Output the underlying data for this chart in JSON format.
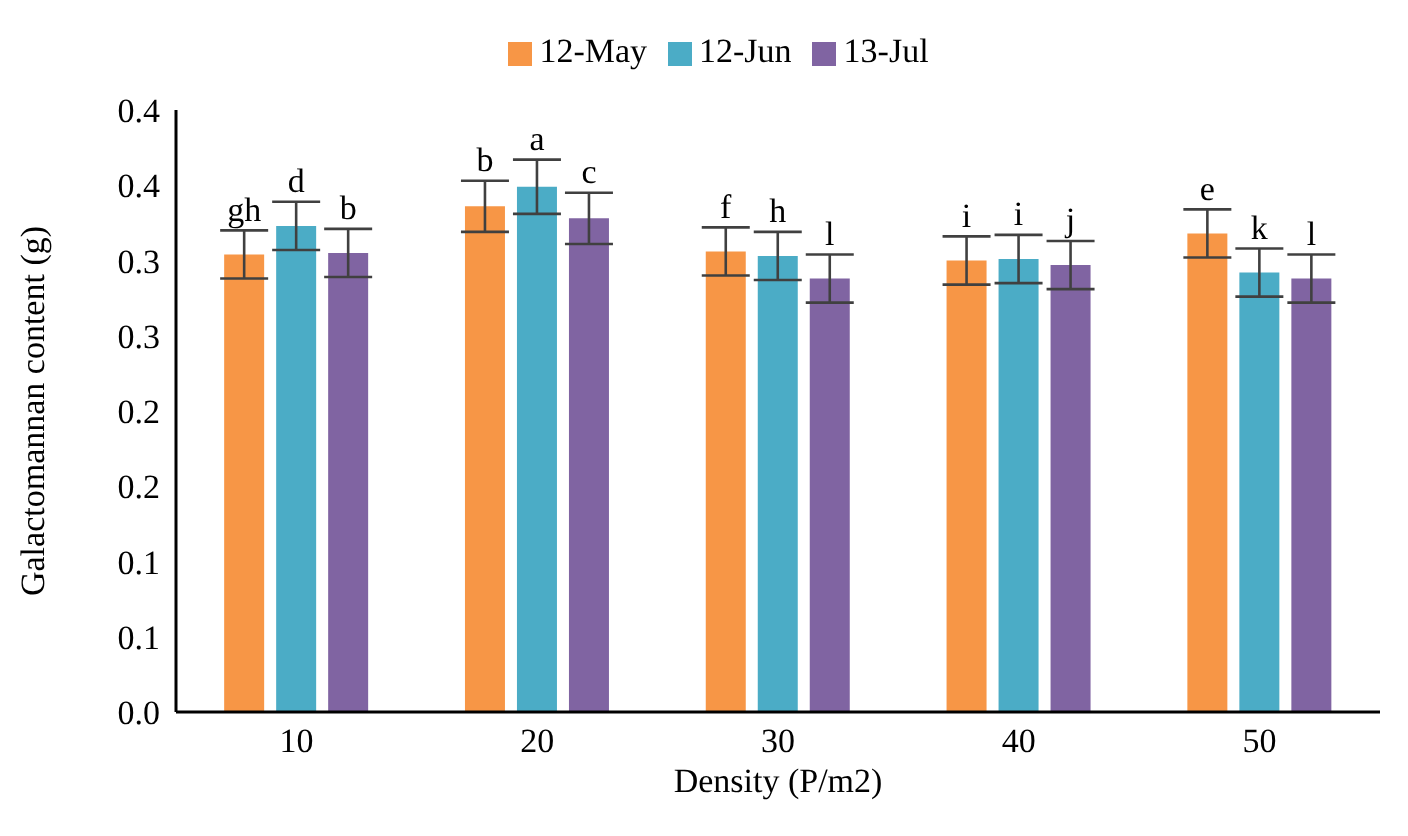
{
  "chart_data": {
    "type": "bar",
    "xlabel": "Density (P/m2)",
    "ylabel": "Galactomannan content (g)",
    "categories": [
      "10",
      "20",
      "30",
      "40",
      "50"
    ],
    "series": [
      {
        "name": "12-May",
        "color": "#f79646",
        "values": [
          0.304,
          0.336,
          0.306,
          0.3,
          0.318
        ],
        "errors": [
          0.016,
          0.017,
          0.016,
          0.016,
          0.016
        ],
        "value_labels": [
          "gh",
          "b",
          "f",
          "i",
          "e"
        ]
      },
      {
        "name": "12-Jun",
        "color": "#4bacc6",
        "values": [
          0.323,
          0.349,
          0.303,
          0.301,
          0.292
        ],
        "errors": [
          0.016,
          0.018,
          0.016,
          0.016,
          0.016
        ],
        "value_labels": [
          "d",
          "a",
          "h",
          "i",
          "k"
        ]
      },
      {
        "name": "13-Jul",
        "color": "#8064a2",
        "values": [
          0.305,
          0.328,
          0.288,
          0.297,
          0.288
        ],
        "errors": [
          0.016,
          0.017,
          0.016,
          0.016,
          0.016
        ],
        "value_labels": [
          "b",
          "c",
          "l",
          "j",
          "l"
        ]
      }
    ],
    "ylim": [
      0,
      0.4
    ],
    "yticks": [
      {
        "value": 0,
        "label": "0.0"
      },
      {
        "value": 0.05,
        "label": "0.1"
      },
      {
        "value": 0.1,
        "label": "0.1"
      },
      {
        "value": 0.15,
        "label": "0.2"
      },
      {
        "value": 0.2,
        "label": "0.2"
      },
      {
        "value": 0.25,
        "label": "0.3"
      },
      {
        "value": 0.3,
        "label": "0.3"
      },
      {
        "value": 0.35,
        "label": "0.4"
      },
      {
        "value": 0.4,
        "label": "0.4"
      }
    ],
    "grid": false,
    "legend": "top"
  }
}
